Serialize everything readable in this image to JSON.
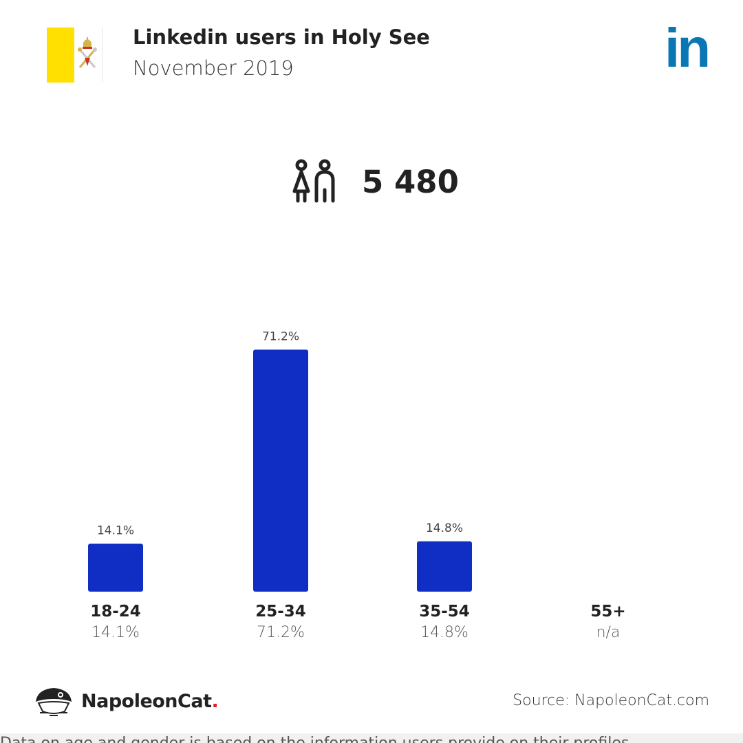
{
  "header": {
    "title": "Linkedin users in Holy See",
    "subtitle": "November 2019",
    "brand_logo_text": "in",
    "brand_color": "#0a77b5"
  },
  "flag": {
    "icon": "holy-see-flag-icon",
    "colors": {
      "yellow": "#ffe000",
      "white": "#ffffff"
    }
  },
  "total": {
    "icon": "people-icon",
    "value": "5 480"
  },
  "chart_data": {
    "type": "bar",
    "categories": [
      "18-24",
      "25-34",
      "35-54",
      "55+"
    ],
    "values": [
      14.1,
      71.2,
      14.8,
      null
    ],
    "value_labels": [
      "14.1%",
      "71.2%",
      "14.8%",
      "n/a"
    ],
    "ylim": [
      0,
      100
    ],
    "grid": false,
    "bar_color": "#102dc4"
  },
  "footer": {
    "logo_icon": "napoleoncat-icon",
    "brand_name": "NapoleonCat",
    "brand_dot": ".",
    "source": "Source: NapoleonCat.com",
    "disclaimer": "Data on age and gender is based on the information users provide on their profiles."
  }
}
